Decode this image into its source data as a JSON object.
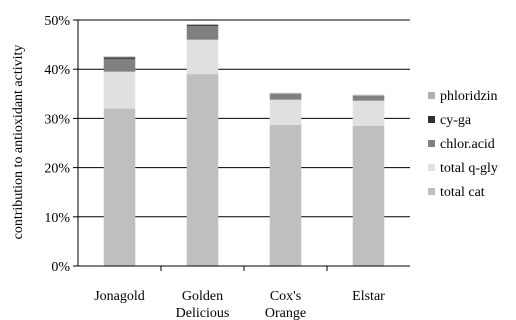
{
  "chart_data": {
    "type": "bar",
    "stacked": true,
    "ylabel": "contribution to antioxidant activity",
    "ylim": [
      0,
      50
    ],
    "yticks": [
      "0%",
      "10%",
      "20%",
      "30%",
      "40%",
      "50%"
    ],
    "grid": true,
    "legend_position": "right",
    "categories": [
      [
        "Jonagold"
      ],
      [
        "Golden",
        "Delicious"
      ],
      [
        "Cox's",
        "Orange"
      ],
      [
        "Elstar"
      ]
    ],
    "series": [
      {
        "name": "total cat",
        "color": "#bfbfbf",
        "values": [
          32,
          39,
          28.7,
          28.5
        ]
      },
      {
        "name": "total q-gly",
        "color": "#e0e0e0",
        "values": [
          7.5,
          7,
          5.1,
          5.1
        ]
      },
      {
        "name": "chlor.acid",
        "color": "#808080",
        "values": [
          2.6,
          2.8,
          1.2,
          1.0
        ]
      },
      {
        "name": "cy-ga",
        "color": "#303030",
        "values": [
          0.3,
          0.2,
          0.0,
          0.0
        ]
      },
      {
        "name": "phloridzin",
        "color": "#b0b0b0",
        "values": [
          0.2,
          0.2,
          0.2,
          0.2
        ]
      }
    ],
    "legend_order": [
      "phloridzin",
      "cy-ga",
      "chlor.acid",
      "total q-gly",
      "total cat"
    ]
  }
}
